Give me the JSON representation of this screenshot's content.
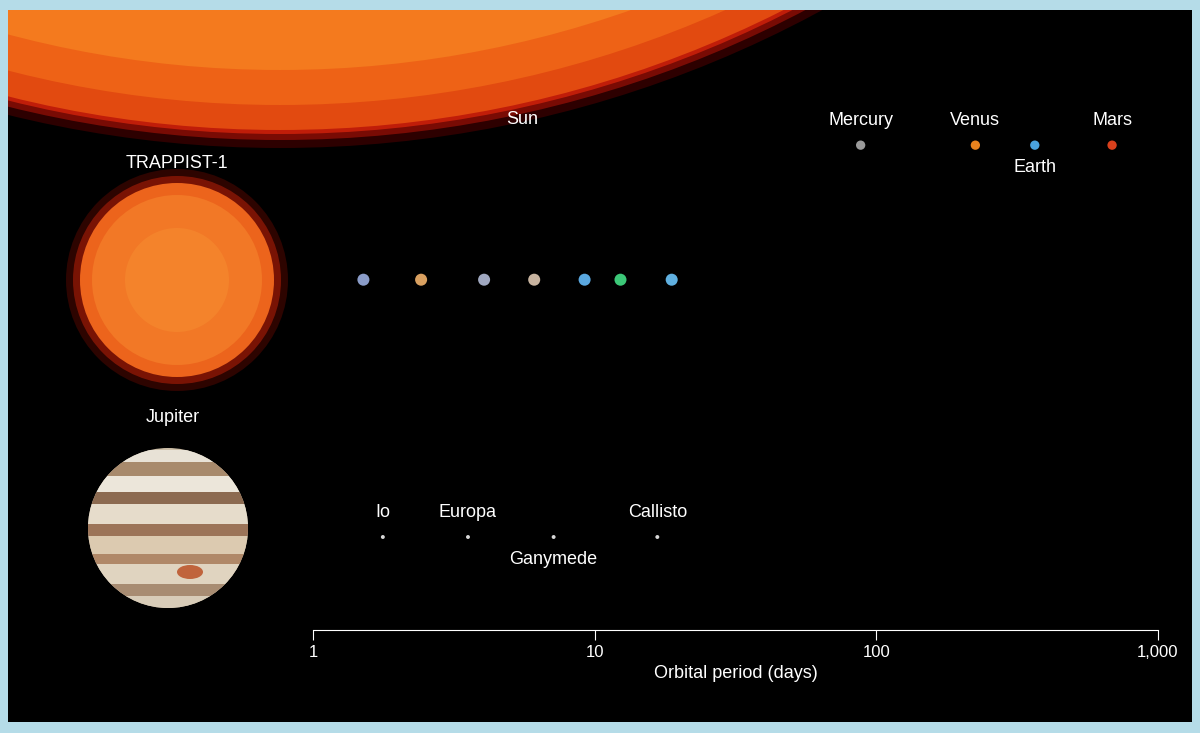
{
  "chart_data": {
    "type": "scatter",
    "xlabel": "Orbital period (days)",
    "log": "x",
    "xlim": [
      1,
      1000
    ],
    "xticks": [
      1,
      10,
      100,
      {
        "value": 1000,
        "label": "1,000"
      }
    ],
    "tick_labels": "x",
    "series": [
      {
        "name": "Sun",
        "x": [
          87.97,
          224.7,
          365.26,
          686.98
        ],
        "labels": [
          "Mercury",
          "Venus",
          "Earth",
          "Mars"
        ],
        "colors": [
          "#9a9a9a",
          "#e8821e",
          "#4aa3df",
          "#d8401c"
        ]
      },
      {
        "name": "TRAPPIST-1",
        "x": [
          1.51,
          2.42,
          4.05,
          6.1,
          9.21,
          12.35,
          18.77
        ],
        "colors": [
          "#8a9cc8",
          "#d9a060",
          "#a0a8c0",
          "#c8b4a0",
          "#5aa8e0",
          "#3cc878",
          "#60b0e0"
        ]
      },
      {
        "name": "Jupiter",
        "x": [
          1.77,
          3.55,
          7.15,
          16.69
        ],
        "labels": [
          "Io",
          "Europa",
          "Ganymede",
          "Callisto"
        ],
        "color": "#d8d8d8"
      }
    ]
  }
}
